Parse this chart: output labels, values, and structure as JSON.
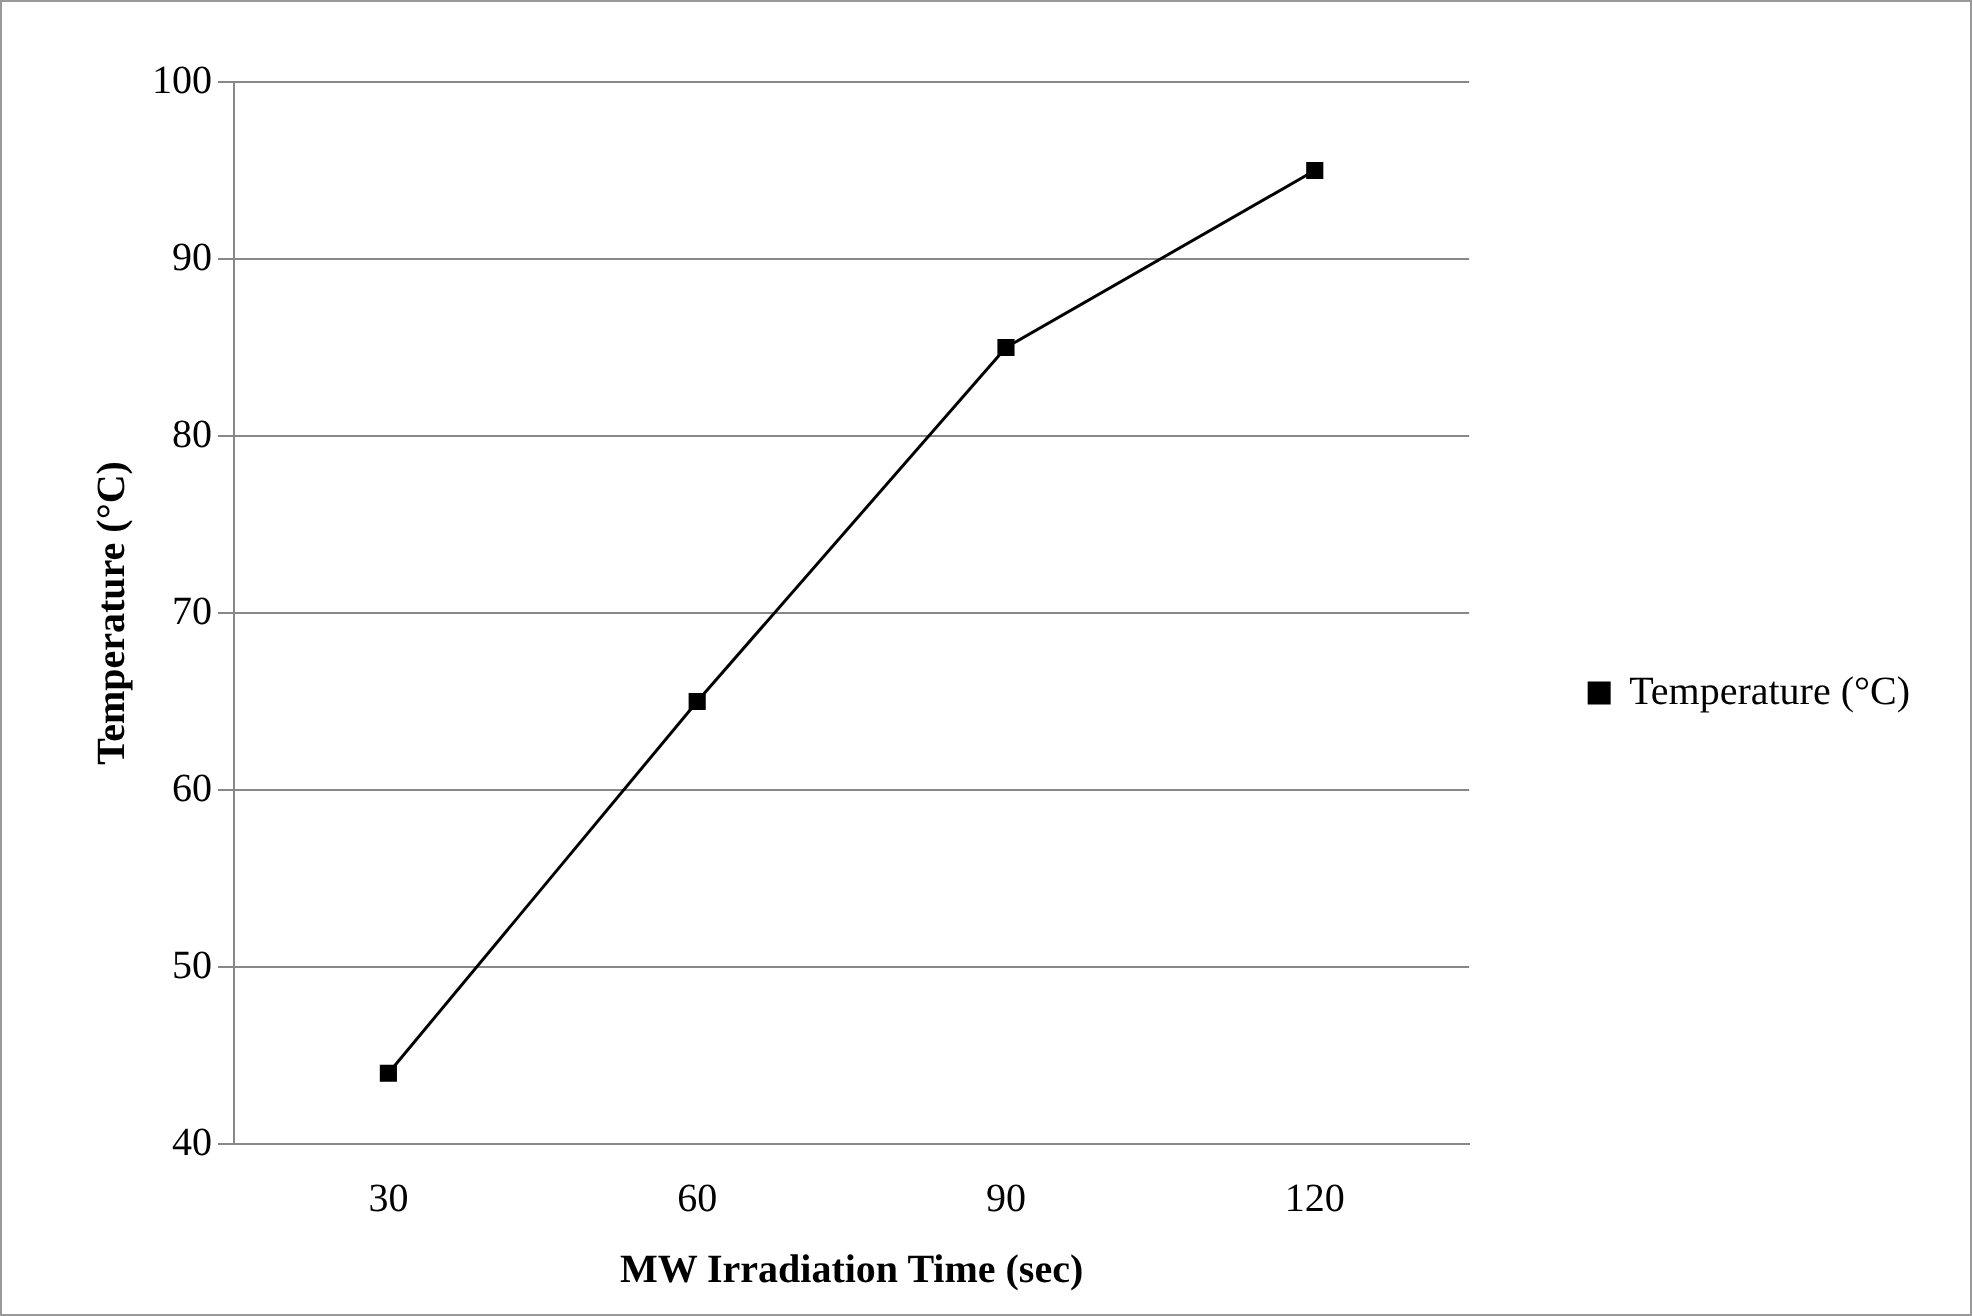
{
  "chart_data": {
    "type": "line",
    "xlabel": "MW Irradiation Time (sec)",
    "ylabel": "Temperature (°C)",
    "categories": [
      "30",
      "60",
      "90",
      "120"
    ],
    "series": [
      {
        "name": "Temperature (°C)",
        "color": "#000000",
        "values": [
          44,
          65,
          85,
          95
        ]
      }
    ],
    "ylim": [
      40,
      100
    ],
    "yticks": [
      40,
      50,
      60,
      70,
      80,
      90,
      100
    ],
    "grid": "y",
    "legend": "right",
    "marker": "square",
    "line_style": "solid"
  }
}
